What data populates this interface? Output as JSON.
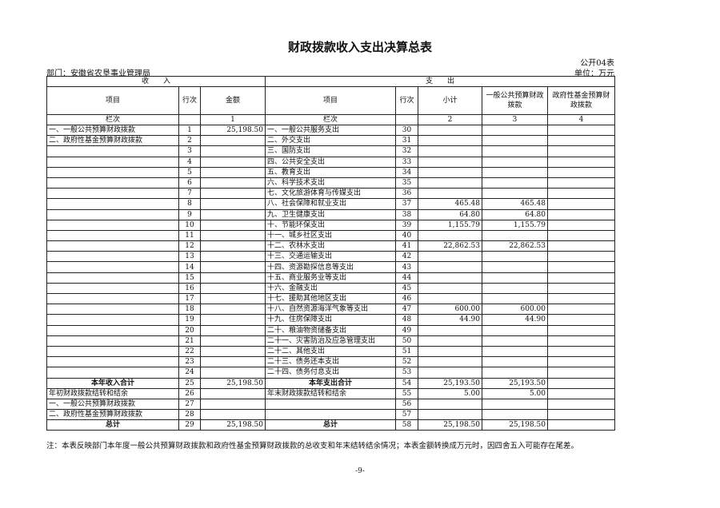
{
  "title": "财政拨款收入支出决算总表",
  "form_code": "公开04表",
  "department": "部门：安徽省农垦事业管理局",
  "unit": "单位：万元",
  "headers": {
    "income": "收　　入",
    "expense": "支　　出",
    "item": "项目",
    "line": "行次",
    "amount": "金额",
    "item2": "项目",
    "line2": "行次",
    "subtotal": "小计",
    "general": "一般公共预算财政拨款",
    "fund": "政府性基金预算财政拨款",
    "col_label": "栏次",
    "col_label2": "栏次",
    "col1": "1",
    "col2": "2",
    "col3": "3",
    "col4": "4"
  },
  "rows": [
    {
      "li": "一、一般公共预算财政拨款",
      "ln": "1",
      "la": "25,198.50",
      "ri": "一、一般公共服务支出",
      "rn": "30",
      "s": "",
      "g": "",
      "f": ""
    },
    {
      "li": "二、政府性基金预算财政拨款",
      "ln": "2",
      "la": "",
      "ri": "二、外交支出",
      "rn": "31",
      "s": "",
      "g": "",
      "f": ""
    },
    {
      "li": "",
      "ln": "3",
      "la": "",
      "ri": "三、国防支出",
      "rn": "32",
      "s": "",
      "g": "",
      "f": ""
    },
    {
      "li": "",
      "ln": "4",
      "la": "",
      "ri": "四、公共安全支出",
      "rn": "33",
      "s": "",
      "g": "",
      "f": ""
    },
    {
      "li": "",
      "ln": "5",
      "la": "",
      "ri": "五、教育支出",
      "rn": "34",
      "s": "",
      "g": "",
      "f": ""
    },
    {
      "li": "",
      "ln": "6",
      "la": "",
      "ri": "六、科学技术支出",
      "rn": "35",
      "s": "",
      "g": "",
      "f": ""
    },
    {
      "li": "",
      "ln": "7",
      "la": "",
      "ri": "七、文化旅游体育与传媒支出",
      "rn": "36",
      "s": "",
      "g": "",
      "f": ""
    },
    {
      "li": "",
      "ln": "8",
      "la": "",
      "ri": "八、社会保障和就业支出",
      "rn": "37",
      "s": "465.48",
      "g": "465.48",
      "f": ""
    },
    {
      "li": "",
      "ln": "9",
      "la": "",
      "ri": "九、卫生健康支出",
      "rn": "38",
      "s": "64.80",
      "g": "64.80",
      "f": ""
    },
    {
      "li": "",
      "ln": "10",
      "la": "",
      "ri": "十、节能环保支出",
      "rn": "39",
      "s": "1,155.79",
      "g": "1,155.79",
      "f": ""
    },
    {
      "li": "",
      "ln": "11",
      "la": "",
      "ri": "十一、城乡社区支出",
      "rn": "40",
      "s": "",
      "g": "",
      "f": ""
    },
    {
      "li": "",
      "ln": "12",
      "la": "",
      "ri": "十二、农林水支出",
      "rn": "41",
      "s": "22,862.53",
      "g": "22,862.53",
      "f": ""
    },
    {
      "li": "",
      "ln": "13",
      "la": "",
      "ri": "十三、交通运输支出",
      "rn": "42",
      "s": "",
      "g": "",
      "f": ""
    },
    {
      "li": "",
      "ln": "14",
      "la": "",
      "ri": "十四、资源勘探信息等支出",
      "rn": "43",
      "s": "",
      "g": "",
      "f": ""
    },
    {
      "li": "",
      "ln": "15",
      "la": "",
      "ri": "十五、商业服务业等支出",
      "rn": "44",
      "s": "",
      "g": "",
      "f": ""
    },
    {
      "li": "",
      "ln": "16",
      "la": "",
      "ri": "十六、金融支出",
      "rn": "45",
      "s": "",
      "g": "",
      "f": ""
    },
    {
      "li": "",
      "ln": "17",
      "la": "",
      "ri": "十七、援助其他地区支出",
      "rn": "46",
      "s": "",
      "g": "",
      "f": ""
    },
    {
      "li": "",
      "ln": "18",
      "la": "",
      "ri": "十八、自然资源海洋气象等支出",
      "rn": "47",
      "s": "600.00",
      "g": "600.00",
      "f": ""
    },
    {
      "li": "",
      "ln": "19",
      "la": "",
      "ri": "十九、住房保障支出",
      "rn": "48",
      "s": "44.90",
      "g": "44.90",
      "f": ""
    },
    {
      "li": "",
      "ln": "20",
      "la": "",
      "ri": "二十、粮油物资储备支出",
      "rn": "49",
      "s": "",
      "g": "",
      "f": ""
    },
    {
      "li": "",
      "ln": "21",
      "la": "",
      "ri": "二十一、灾害防治及应急管理支出",
      "rn": "50",
      "s": "",
      "g": "",
      "f": ""
    },
    {
      "li": "",
      "ln": "22",
      "la": "",
      "ri": "二十二、其他支出",
      "rn": "51",
      "s": "",
      "g": "",
      "f": ""
    },
    {
      "li": "",
      "ln": "23",
      "la": "",
      "ri": "二十三、债务还本支出",
      "rn": "52",
      "s": "",
      "g": "",
      "f": ""
    },
    {
      "li": "",
      "ln": "24",
      "la": "",
      "ri": "二十四、债务付息支出",
      "rn": "53",
      "s": "",
      "g": "",
      "f": ""
    },
    {
      "li": "本年收入合计",
      "ln": "25",
      "la": "25,198.50",
      "ri": "本年支出合计",
      "rn": "54",
      "s": "25,193.50",
      "g": "25,193.50",
      "f": "",
      "bold": true
    },
    {
      "li": "年初财政拨款结转和结余",
      "ln": "26",
      "la": "",
      "ri": "年末财政拨款结转和结余",
      "rn": "55",
      "s": "5.00",
      "g": "5.00",
      "f": ""
    },
    {
      "li": "一、一般公共预算财政拨款",
      "ln": "27",
      "la": "",
      "ri": "",
      "rn": "56",
      "s": "",
      "g": "",
      "f": ""
    },
    {
      "li": "二、政府性基金预算财政拨款",
      "ln": "28",
      "la": "",
      "ri": "",
      "rn": "57",
      "s": "",
      "g": "",
      "f": ""
    },
    {
      "li": "总计",
      "ln": "29",
      "la": "25,198.50",
      "ri": "总计",
      "rn": "58",
      "s": "25,198.50",
      "g": "25,198.50",
      "f": "",
      "bold": true
    }
  ],
  "note": "注：本表反映部门本年度一般公共预算财政拨款和政府性基金预算财政拨款的总收支和年末结转结余情况；本表金额转换成万元时，因四舍五入可能存在尾差。",
  "page_number": "-9-"
}
